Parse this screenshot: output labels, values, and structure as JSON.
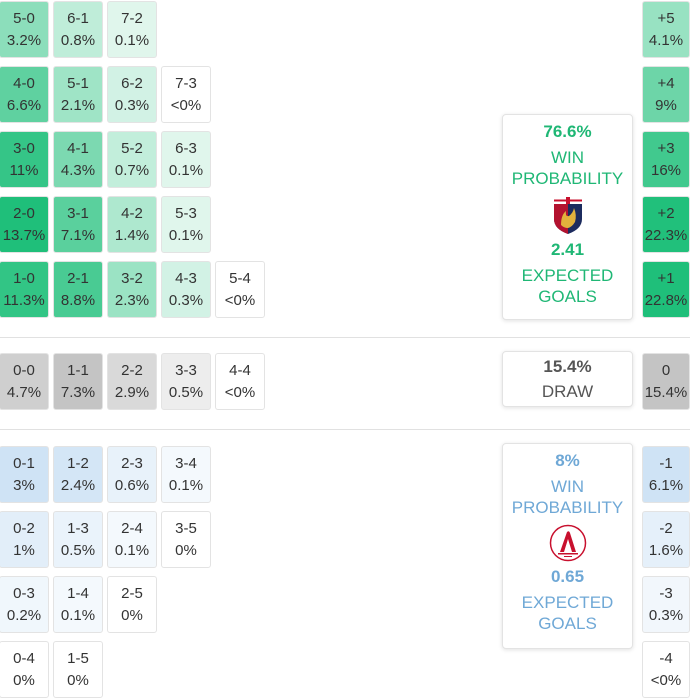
{
  "chart_data": {
    "type": "heatmap",
    "home": {
      "color": "#1fb775",
      "win_probability": "76.6%",
      "win_label_1": "WIN",
      "win_label_2": "PROBABILITY",
      "expected_goals": "2.41",
      "xg_label_1": "EXPECTED",
      "xg_label_2": "GOALS"
    },
    "away": {
      "color": "#6fa8d6",
      "win_probability": "8%",
      "win_label_1": "WIN",
      "win_label_2": "PROBABILITY",
      "expected_goals": "0.65",
      "xg_label_1": "EXPECTED",
      "xg_label_2": "GOALS"
    },
    "draw": {
      "probability": "15.4%",
      "label": "DRAW"
    },
    "home_win_grid": [
      [
        {
          "score": "5-0",
          "pct": "3.2%",
          "p": 3.2
        },
        {
          "score": "6-1",
          "pct": "0.8%",
          "p": 0.8
        },
        {
          "score": "7-2",
          "pct": "0.1%",
          "p": 0.1
        }
      ],
      [
        {
          "score": "4-0",
          "pct": "6.6%",
          "p": 6.6
        },
        {
          "score": "5-1",
          "pct": "2.1%",
          "p": 2.1
        },
        {
          "score": "6-2",
          "pct": "0.3%",
          "p": 0.3
        },
        {
          "score": "7-3",
          "pct": "<0%",
          "p": 0
        }
      ],
      [
        {
          "score": "3-0",
          "pct": "11%",
          "p": 11
        },
        {
          "score": "4-1",
          "pct": "4.3%",
          "p": 4.3
        },
        {
          "score": "5-2",
          "pct": "0.7%",
          "p": 0.7
        },
        {
          "score": "6-3",
          "pct": "0.1%",
          "p": 0.1
        }
      ],
      [
        {
          "score": "2-0",
          "pct": "13.7%",
          "p": 13.7
        },
        {
          "score": "3-1",
          "pct": "7.1%",
          "p": 7.1
        },
        {
          "score": "4-2",
          "pct": "1.4%",
          "p": 1.4
        },
        {
          "score": "5-3",
          "pct": "0.1%",
          "p": 0.1
        }
      ],
      [
        {
          "score": "1-0",
          "pct": "11.3%",
          "p": 11.3
        },
        {
          "score": "2-1",
          "pct": "8.8%",
          "p": 8.8
        },
        {
          "score": "3-2",
          "pct": "2.3%",
          "p": 2.3
        },
        {
          "score": "4-3",
          "pct": "0.3%",
          "p": 0.3
        },
        {
          "score": "5-4",
          "pct": "<0%",
          "p": 0
        }
      ]
    ],
    "draw_row": [
      {
        "score": "0-0",
        "pct": "4.7%",
        "p": 4.7
      },
      {
        "score": "1-1",
        "pct": "7.3%",
        "p": 7.3
      },
      {
        "score": "2-2",
        "pct": "2.9%",
        "p": 2.9
      },
      {
        "score": "3-3",
        "pct": "0.5%",
        "p": 0.5
      },
      {
        "score": "4-4",
        "pct": "<0%",
        "p": 0
      }
    ],
    "away_win_grid": [
      [
        {
          "score": "0-1",
          "pct": "3%",
          "p": 3
        },
        {
          "score": "1-2",
          "pct": "2.4%",
          "p": 2.4
        },
        {
          "score": "2-3",
          "pct": "0.6%",
          "p": 0.6
        },
        {
          "score": "3-4",
          "pct": "0.1%",
          "p": 0.1
        }
      ],
      [
        {
          "score": "0-2",
          "pct": "1%",
          "p": 1
        },
        {
          "score": "1-3",
          "pct": "0.5%",
          "p": 0.5
        },
        {
          "score": "2-4",
          "pct": "0.1%",
          "p": 0.1
        },
        {
          "score": "3-5",
          "pct": "0%",
          "p": 0
        }
      ],
      [
        {
          "score": "0-3",
          "pct": "0.2%",
          "p": 0.2
        },
        {
          "score": "1-4",
          "pct": "0.1%",
          "p": 0.1
        },
        {
          "score": "2-5",
          "pct": "0%",
          "p": 0
        }
      ],
      [
        {
          "score": "0-4",
          "pct": "0%",
          "p": 0
        },
        {
          "score": "1-5",
          "pct": "0%",
          "p": 0
        }
      ]
    ],
    "margins_home": [
      {
        "margin": "+5",
        "pct": "4.1%",
        "p": 4.1
      },
      {
        "margin": "+4",
        "pct": "9%",
        "p": 9
      },
      {
        "margin": "+3",
        "pct": "16%",
        "p": 16
      },
      {
        "margin": "+2",
        "pct": "22.3%",
        "p": 22.3
      },
      {
        "margin": "+1",
        "pct": "22.8%",
        "p": 22.8
      }
    ],
    "margin_draw": {
      "margin": "0",
      "pct": "15.4%",
      "p": 15.4
    },
    "margins_away": [
      {
        "margin": "-1",
        "pct": "6.1%",
        "p": 6.1
      },
      {
        "margin": "-2",
        "pct": "1.6%",
        "p": 1.6
      },
      {
        "margin": "-3",
        "pct": "0.3%",
        "p": 0.3
      },
      {
        "margin": "-4",
        "pct": "<0%",
        "p": 0
      }
    ]
  }
}
